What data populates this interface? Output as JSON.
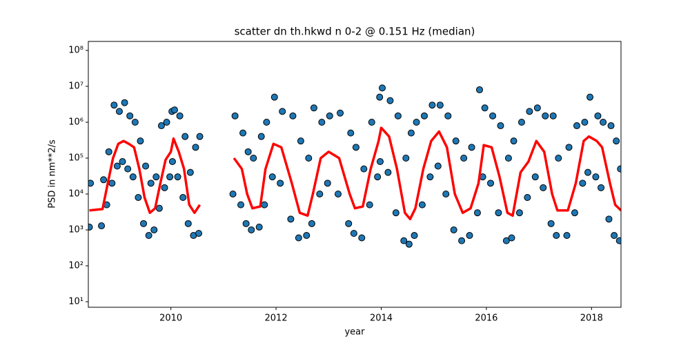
{
  "chart_data": {
    "type": "scatter",
    "title": "scatter dn th.hkwd n 0-2 @ 0.151 Hz (median)",
    "xlabel": "year",
    "ylabel": "PSD in nm**2/s",
    "xlim": [
      2008.43,
      2018.56
    ],
    "ylim": [
      7,
      178000000
    ],
    "yscale": "log",
    "xticks": [
      2010,
      2012,
      2014,
      2016,
      2018
    ],
    "yticks": [
      {
        "value": 10,
        "label": "10¹"
      },
      {
        "value": 100,
        "label": "10²"
      },
      {
        "value": 1000,
        "label": "10³"
      },
      {
        "value": 10000,
        "label": "10⁴"
      },
      {
        "value": 100000,
        "label": "10⁵"
      },
      {
        "value": 1000000,
        "label": "10⁶"
      },
      {
        "value": 10000000,
        "label": "10⁷"
      },
      {
        "value": 100000000,
        "label": "10⁸"
      }
    ],
    "series": [
      {
        "type": "scatter",
        "color": "#1f77b4",
        "x": [
          2008.47,
          2008.45,
          2008.72,
          2008.68,
          2008.82,
          2008.78,
          2008.92,
          2008.88,
          2009.02,
          2008.98,
          2009.12,
          2009.08,
          2009.22,
          2009.18,
          2009.32,
          2009.28,
          2009.42,
          2009.38,
          2009.52,
          2009.48,
          2009.62,
          2009.58,
          2009.72,
          2009.68,
          2009.82,
          2009.78,
          2009.92,
          2009.88,
          2010.02,
          2009.98,
          2010.07,
          2010.03,
          2010.17,
          2010.13,
          2010.27,
          2010.23,
          2010.37,
          2010.33,
          2010.47,
          2010.43,
          2010.55,
          2010.53,
          2011.22,
          2011.18,
          2011.37,
          2011.33,
          2011.47,
          2011.43,
          2011.57,
          2011.53,
          2011.72,
          2011.68,
          2011.82,
          2011.78,
          2011.97,
          2011.93,
          2012.12,
          2012.08,
          2012.32,
          2012.28,
          2012.47,
          2012.43,
          2012.62,
          2012.58,
          2012.72,
          2012.68,
          2012.87,
          2012.83,
          2013.02,
          2012.98,
          2013.22,
          2013.18,
          2013.42,
          2013.38,
          2013.52,
          2013.48,
          2013.67,
          2013.63,
          2013.82,
          2013.78,
          2013.97,
          2013.93,
          2014.02,
          2013.98,
          2014.17,
          2014.13,
          2014.32,
          2014.28,
          2014.47,
          2014.43,
          2014.57,
          2014.53,
          2014.67,
          2014.63,
          2014.82,
          2014.78,
          2014.97,
          2014.93,
          2015.12,
          2015.08,
          2015.27,
          2015.23,
          2015.42,
          2015.38,
          2015.57,
          2015.53,
          2015.72,
          2015.68,
          2015.87,
          2015.83,
          2015.97,
          2015.93,
          2016.12,
          2016.08,
          2016.27,
          2016.23,
          2016.42,
          2016.38,
          2016.52,
          2016.48,
          2016.67,
          2016.63,
          2016.82,
          2016.78,
          2016.97,
          2016.93,
          2017.12,
          2017.08,
          2017.27,
          2017.23,
          2017.37,
          2017.33,
          2017.57,
          2017.53,
          2017.72,
          2017.68,
          2017.87,
          2017.83,
          2017.97,
          2017.93,
          2018.12,
          2018.08,
          2018.22,
          2018.18,
          2018.37,
          2018.33,
          2018.47,
          2018.43,
          2018.55,
          2018.53
        ],
        "values": [
          20000,
          1200,
          25000,
          1300,
          150000,
          5000,
          3000000,
          20000,
          2000000,
          60000,
          3500000,
          80000,
          1500000,
          50000,
          1000000,
          30000,
          300000,
          8000,
          60000,
          1500,
          20000,
          700,
          30000,
          1000,
          800000,
          4000,
          1000000,
          15000,
          2000000,
          30000,
          2200000,
          80000,
          1500000,
          30000,
          400000,
          8000,
          40000,
          1500,
          200000,
          700,
          400000,
          800,
          1500000,
          10000,
          500000,
          5000,
          150000,
          1500,
          100000,
          1000,
          400000,
          1200,
          1000000,
          5000,
          5000000,
          30000,
          2000000,
          20000,
          1500000,
          2000,
          300000,
          600,
          100000,
          700,
          2500000,
          1500,
          1000000,
          10000,
          1500000,
          20000,
          1800000,
          10000,
          500000,
          1500,
          200000,
          800,
          50000,
          600,
          1000000,
          5000,
          5000000,
          30000,
          9000000,
          80000,
          4000000,
          40000,
          1500000,
          3000,
          100000,
          500,
          500000,
          400,
          1000000,
          700,
          1500000,
          5000,
          3000000,
          30000,
          3000000,
          60000,
          1500000,
          10000,
          300000,
          1000,
          100000,
          500,
          200000,
          700,
          8000000,
          3000,
          2500000,
          30000,
          1500000,
          20000,
          800000,
          3000,
          100000,
          500,
          300000,
          600,
          1000000,
          3000,
          2000000,
          8000,
          2500000,
          30000,
          1500000,
          15000,
          1500000,
          1500,
          100000,
          700,
          200000,
          700,
          800000,
          3000,
          1000000,
          20000,
          5000000,
          40000,
          1500000,
          30000,
          1000000,
          15000,
          800000,
          2000,
          300000,
          700,
          50000,
          500
        ]
      },
      {
        "type": "line",
        "color": "#ff0000",
        "x": [
          2008.45,
          2008.7,
          2008.8,
          2008.9,
          2009.0,
          2009.1,
          2009.2,
          2009.3,
          2009.4,
          2009.5,
          2009.6,
          2009.7,
          2009.8,
          2009.9,
          2010.0,
          2010.05,
          2010.15,
          2010.25,
          2010.35,
          2010.45,
          2010.55,
          2010.9,
          2011.2,
          2011.35,
          2011.45,
          2011.55,
          2011.7,
          2011.8,
          2011.95,
          2012.1,
          2012.3,
          2012.45,
          2012.6,
          2012.7,
          2012.85,
          2013.0,
          2013.2,
          2013.4,
          2013.5,
          2013.65,
          2013.8,
          2013.95,
          2014.0,
          2014.15,
          2014.3,
          2014.45,
          2014.55,
          2014.65,
          2014.8,
          2014.95,
          2015.1,
          2015.25,
          2015.4,
          2015.55,
          2015.7,
          2015.85,
          2015.95,
          2016.1,
          2016.25,
          2016.4,
          2016.5,
          2016.65,
          2016.8,
          2016.95,
          2017.1,
          2017.25,
          2017.35,
          2017.55,
          2017.7,
          2017.85,
          2017.95,
          2018.1,
          2018.2,
          2018.35,
          2018.45,
          2018.56
        ],
        "values": [
          3500,
          3800,
          20000,
          100000,
          250000,
          300000,
          250000,
          200000,
          50000,
          8000,
          3000,
          4000,
          20000,
          90000,
          150000,
          350000,
          150000,
          50000,
          5000,
          3000,
          5000,
          null,
          100000,
          50000,
          10000,
          4000,
          4500,
          50000,
          250000,
          200000,
          20000,
          3000,
          2500,
          10000,
          100000,
          150000,
          100000,
          10000,
          4000,
          4500,
          50000,
          300000,
          700000,
          400000,
          50000,
          3000,
          2000,
          4000,
          50000,
          300000,
          550000,
          200000,
          10000,
          3000,
          4000,
          20000,
          230000,
          200000,
          30000,
          3000,
          2500,
          40000,
          80000,
          300000,
          150000,
          10000,
          3500,
          3500,
          20000,
          300000,
          400000,
          300000,
          200000,
          20000,
          5000,
          3500
        ]
      }
    ]
  }
}
